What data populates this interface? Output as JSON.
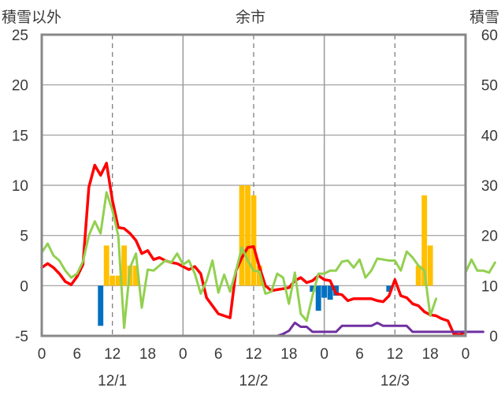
{
  "chart_data": {
    "type": "combo",
    "title": "余市",
    "left_axis_label": "積雪以外",
    "right_axis_label": "積雪",
    "left_ylim": [
      -5,
      25
    ],
    "left_ticks": [
      "-5",
      "0",
      "5",
      "10",
      "15",
      "20",
      "25"
    ],
    "right_ylim": [
      0,
      60
    ],
    "right_ticks": [
      "0",
      "10",
      "20",
      "30",
      "40",
      "50",
      "60"
    ],
    "x_tick_labels": [
      "0",
      "6",
      "12",
      "18",
      "0",
      "6",
      "12",
      "18",
      "0",
      "6",
      "12",
      "18",
      "0"
    ],
    "day_labels": [
      "12/1",
      "12/2",
      "12/3"
    ],
    "grid": {
      "day_separators": true,
      "noon_dashed": true
    },
    "series": [
      {
        "color": "#ff0000",
        "axis": "left",
        "kind": "line",
        "values": [
          1.8,
          2.2,
          1.8,
          1.2,
          0.4,
          0.1,
          0.9,
          2.1,
          9.8,
          12.0,
          11.0,
          12.2,
          8.5,
          5.8,
          5.7,
          5.2,
          4.5,
          3.2,
          3.5,
          2.6,
          2.8,
          2.5,
          2.3,
          2.2,
          1.9,
          1.6,
          1.9,
          1.2,
          -1.2,
          -2.0,
          -2.8,
          -3.0,
          -3.2,
          1.5,
          2.8,
          3.8,
          3.9,
          1.8,
          0.0,
          -0.5,
          -0.4,
          -0.3,
          -0.2,
          0.5,
          0.8,
          0.3,
          0.5,
          1.0,
          0.6,
          0.5,
          -0.8,
          -0.9,
          -1.5,
          -1.3,
          -1.3,
          -1.3,
          -1.3,
          -1.5,
          -1.6,
          -1.0,
          0.6,
          -1.0,
          -1.2,
          -1.8,
          -2.0,
          -2.6,
          -2.9,
          -3.0,
          -3.3,
          -3.5,
          -4.8,
          -4.9,
          -4.6
        ]
      },
      {
        "color": "#92d050",
        "axis": "left",
        "kind": "line",
        "values": [
          3.3,
          4.2,
          3.0,
          2.5,
          1.5,
          0.8,
          1.2,
          2.4,
          5.0,
          6.4,
          5.2,
          9.3,
          7.5,
          5.0,
          -4.2,
          1.8,
          3.2,
          -2.2,
          1.6,
          1.5,
          2.0,
          2.5,
          2.3,
          3.2,
          2.1,
          2.5,
          1.2,
          -0.8,
          0.5,
          2.5,
          -0.7,
          1.1,
          -0.6,
          1.5,
          3.8,
          2.5,
          1.5,
          1.4,
          -0.8,
          -0.6,
          1.2,
          0.8,
          -1.8,
          1.3,
          -2.8,
          -3.5,
          -1.0,
          1.2,
          1.2,
          1.5,
          1.5,
          2.4,
          2.5,
          1.8,
          2.6,
          0.8,
          1.5,
          2.7,
          2.6,
          2.5,
          2.5,
          1.5,
          3.4,
          2.8,
          2.0,
          1.5,
          -3.0,
          -1.3,
          null,
          null,
          null,
          null,
          1.3,
          2.6,
          1.5,
          1.5,
          1.3,
          2.3
        ]
      },
      {
        "color": "#7030a0",
        "axis": "right",
        "kind": "line",
        "values": [
          0,
          0,
          0,
          0,
          0,
          0,
          0,
          0,
          0,
          0,
          0,
          0,
          0,
          0,
          0,
          0,
          0,
          0,
          0,
          0,
          0,
          0,
          0,
          0,
          0,
          0,
          0,
          0,
          0,
          0,
          0,
          0,
          0,
          0,
          0,
          0,
          0,
          0,
          0,
          0,
          0,
          0.4,
          1.0,
          2.6,
          1.8,
          1.8,
          0.8,
          0.8,
          0.8,
          0.8,
          0.8,
          2.0,
          2.0,
          2.0,
          2.0,
          2.0,
          2.0,
          2.6,
          2.0,
          2.0,
          2.0,
          2.0,
          2.0,
          0.8,
          0.8,
          0.8,
          0.8,
          0.8,
          0.8,
          0.8,
          0.8,
          0.8,
          0.8,
          0.8,
          0.8,
          0.8
        ]
      },
      {
        "color": "#ffc000",
        "axis": "left",
        "kind": "bar",
        "hours": [
          11,
          12,
          13,
          14,
          15,
          16,
          34,
          35,
          36,
          37,
          38,
          64,
          65,
          66
        ],
        "values": [
          4.0,
          1.0,
          1.0,
          4.0,
          2.0,
          2.0,
          10.0,
          10.0,
          9.0,
          2.0,
          0.0,
          2.0,
          9.0,
          4.0
        ]
      },
      {
        "color": "#0070c0",
        "axis": "left",
        "kind": "bar",
        "hours": [
          10,
          11,
          46,
          47,
          48,
          49,
          50,
          59
        ],
        "values": [
          -4.0,
          0,
          -0.6,
          -2.5,
          -1.2,
          -1.4,
          -1.0,
          -0.6
        ]
      }
    ]
  }
}
